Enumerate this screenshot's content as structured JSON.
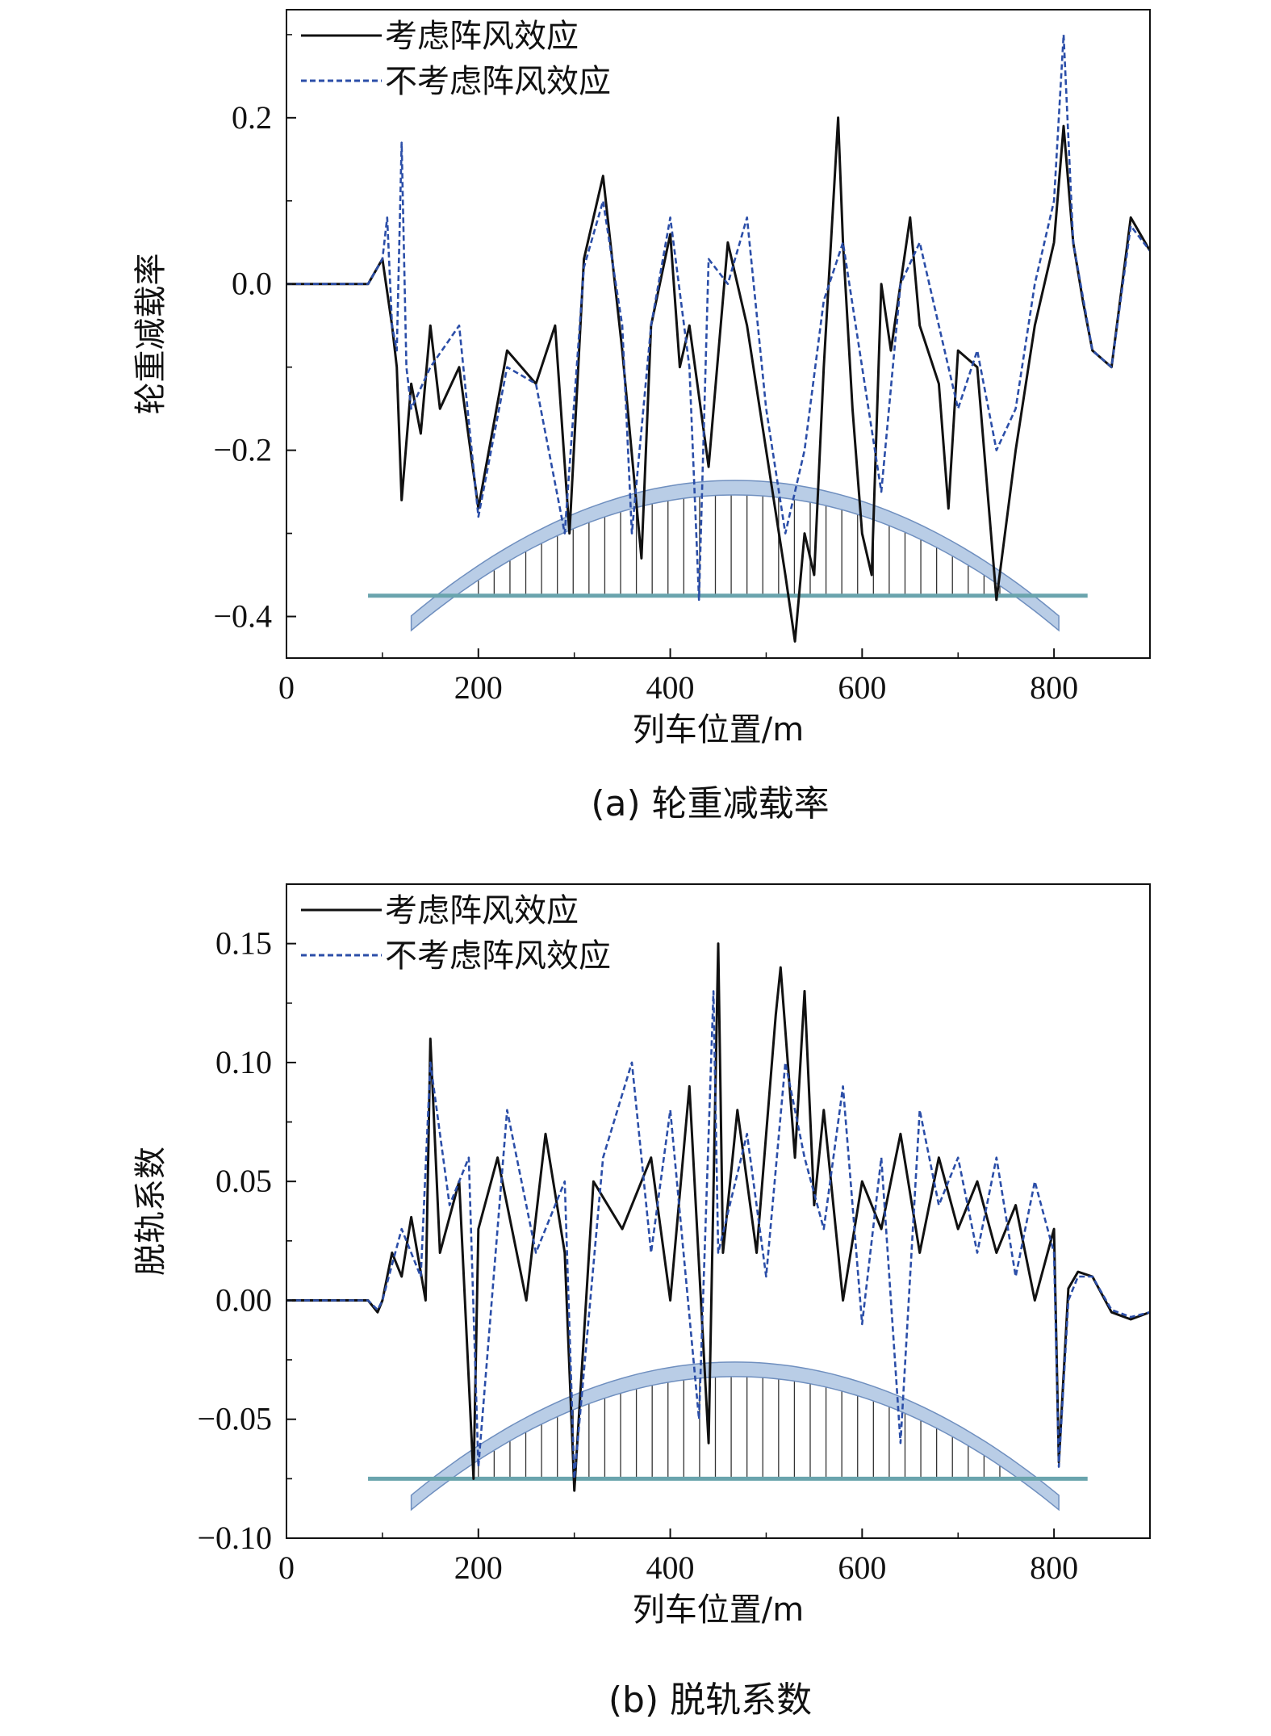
{
  "chart_data": [
    {
      "type": "line",
      "caption": "(a) 轮重减载率",
      "xlabel": "列车位置/m",
      "ylabel": "轮重减载率",
      "xlim": [
        0,
        900
      ],
      "ylim": [
        -0.45,
        0.33
      ],
      "xticks": [
        0,
        200,
        400,
        600,
        800
      ],
      "xtick_labels": [
        "0",
        "200",
        "400",
        "600",
        "800"
      ],
      "yticks": [
        -0.4,
        -0.2,
        0.0,
        0.2
      ],
      "ytick_labels": [
        "−0.4",
        "−0.2",
        "0.0",
        "0.2"
      ],
      "legend_position": "top-left",
      "bridge": {
        "start": 85,
        "end": 835,
        "deck_y": -0.375,
        "arch_foot_y": -0.408,
        "arch_crown_y": -0.245,
        "hanger_start": 200,
        "hanger_end": 760
      },
      "series": [
        {
          "name": "考虑阵风效应",
          "style": "solid",
          "color": "#111111",
          "x": [
            0,
            85,
            95,
            100,
            110,
            115,
            120,
            130,
            140,
            150,
            160,
            180,
            200,
            230,
            260,
            280,
            295,
            310,
            330,
            350,
            370,
            380,
            400,
            410,
            420,
            440,
            460,
            480,
            500,
            520,
            530,
            540,
            550,
            560,
            570,
            575,
            580,
            590,
            600,
            610,
            620,
            630,
            650,
            660,
            680,
            690,
            700,
            720,
            740,
            760,
            780,
            800,
            810,
            820,
            830,
            840,
            860,
            880,
            890,
            900
          ],
          "y": [
            0.0,
            0.0,
            0.02,
            0.03,
            -0.05,
            -0.1,
            -0.26,
            -0.12,
            -0.18,
            -0.05,
            -0.15,
            -0.1,
            -0.27,
            -0.08,
            -0.12,
            -0.05,
            -0.3,
            0.03,
            0.13,
            -0.08,
            -0.33,
            -0.05,
            0.06,
            -0.1,
            -0.05,
            -0.22,
            0.05,
            -0.05,
            -0.2,
            -0.35,
            -0.43,
            -0.3,
            -0.35,
            -0.1,
            0.1,
            0.2,
            0.05,
            -0.15,
            -0.3,
            -0.35,
            0.0,
            -0.08,
            0.08,
            -0.05,
            -0.12,
            -0.27,
            -0.08,
            -0.1,
            -0.38,
            -0.2,
            -0.05,
            0.05,
            0.19,
            0.05,
            -0.02,
            -0.08,
            -0.1,
            0.08,
            0.06,
            0.04
          ]
        },
        {
          "name": "不考虑阵风效应",
          "style": "dashed",
          "color": "#2b4ea8",
          "x": [
            0,
            85,
            95,
            100,
            105,
            110,
            115,
            120,
            125,
            130,
            150,
            180,
            200,
            230,
            260,
            290,
            310,
            330,
            350,
            360,
            380,
            400,
            420,
            430,
            440,
            460,
            480,
            500,
            520,
            530,
            540,
            560,
            580,
            600,
            620,
            640,
            660,
            680,
            700,
            720,
            740,
            760,
            780,
            800,
            810,
            820,
            840,
            860,
            880,
            900
          ],
          "y": [
            0.0,
            0.0,
            0.02,
            0.03,
            0.08,
            -0.05,
            -0.08,
            0.17,
            -0.1,
            -0.15,
            -0.1,
            -0.05,
            -0.28,
            -0.1,
            -0.12,
            -0.3,
            0.02,
            0.1,
            -0.05,
            -0.3,
            -0.05,
            0.08,
            -0.1,
            -0.38,
            0.03,
            0.0,
            0.08,
            -0.15,
            -0.3,
            -0.25,
            -0.2,
            -0.02,
            0.05,
            -0.1,
            -0.25,
            0.0,
            0.05,
            -0.05,
            -0.15,
            -0.08,
            -0.2,
            -0.15,
            0.0,
            0.1,
            0.3,
            0.05,
            -0.08,
            -0.1,
            0.07,
            0.04
          ]
        }
      ]
    },
    {
      "type": "line",
      "caption": "(b) 脱轨系数",
      "xlabel": "列车位置/m",
      "ylabel": "脱轨系数",
      "xlim": [
        0,
        900
      ],
      "ylim": [
        -0.1,
        0.175
      ],
      "xticks": [
        0,
        200,
        400,
        600,
        800
      ],
      "xtick_labels": [
        "0",
        "200",
        "400",
        "600",
        "800"
      ],
      "yticks": [
        -0.1,
        -0.05,
        0.0,
        0.05,
        0.1,
        0.15
      ],
      "ytick_labels": [
        "−0.10",
        "−0.05",
        "0.00",
        "0.05",
        "0.10",
        "0.15"
      ],
      "legend_position": "top-left",
      "bridge": {
        "start": 85,
        "end": 835,
        "deck_y": -0.075,
        "arch_foot_y": -0.085,
        "arch_crown_y": -0.029,
        "hanger_start": 200,
        "hanger_end": 760
      },
      "series": [
        {
          "name": "考虑阵风效应",
          "style": "solid",
          "color": "#111111",
          "x": [
            0,
            85,
            95,
            100,
            110,
            120,
            130,
            145,
            150,
            160,
            180,
            195,
            200,
            220,
            250,
            270,
            290,
            300,
            320,
            350,
            380,
            400,
            420,
            440,
            450,
            455,
            470,
            490,
            510,
            515,
            530,
            540,
            550,
            560,
            580,
            600,
            620,
            640,
            660,
            680,
            700,
            720,
            740,
            760,
            780,
            800,
            805,
            815,
            825,
            840,
            860,
            880,
            900
          ],
          "y": [
            0.0,
            0.0,
            -0.005,
            0.0,
            0.02,
            0.01,
            0.035,
            0.0,
            0.11,
            0.02,
            0.05,
            -0.075,
            0.03,
            0.06,
            0.0,
            0.07,
            0.02,
            -0.08,
            0.05,
            0.03,
            0.06,
            0.0,
            0.09,
            -0.06,
            0.15,
            0.02,
            0.08,
            0.02,
            0.12,
            0.14,
            0.06,
            0.13,
            0.04,
            0.08,
            0.0,
            0.05,
            0.03,
            0.07,
            0.02,
            0.06,
            0.03,
            0.05,
            0.02,
            0.04,
            0.0,
            0.03,
            -0.068,
            0.005,
            0.012,
            0.01,
            -0.005,
            -0.008,
            -0.005
          ]
        },
        {
          "name": "不考虑阵风效应",
          "style": "dashed",
          "color": "#2b4ea8",
          "x": [
            0,
            85,
            95,
            100,
            110,
            120,
            140,
            150,
            170,
            190,
            200,
            230,
            260,
            290,
            300,
            330,
            360,
            380,
            400,
            430,
            445,
            450,
            480,
            500,
            520,
            540,
            560,
            580,
            600,
            620,
            640,
            660,
            680,
            700,
            720,
            740,
            760,
            780,
            800,
            805,
            815,
            825,
            840,
            860,
            880,
            900
          ],
          "y": [
            0.0,
            0.0,
            -0.004,
            0.0,
            0.015,
            0.03,
            0.01,
            0.1,
            0.04,
            0.06,
            -0.07,
            0.08,
            0.02,
            0.05,
            -0.075,
            0.06,
            0.1,
            0.02,
            0.08,
            -0.05,
            0.13,
            0.02,
            0.07,
            0.01,
            0.1,
            0.06,
            0.03,
            0.09,
            -0.01,
            0.06,
            -0.06,
            0.08,
            0.04,
            0.06,
            0.02,
            0.06,
            0.01,
            0.05,
            0.02,
            -0.07,
            0.0,
            0.01,
            0.01,
            -0.004,
            -0.007,
            -0.005
          ]
        }
      ]
    }
  ]
}
